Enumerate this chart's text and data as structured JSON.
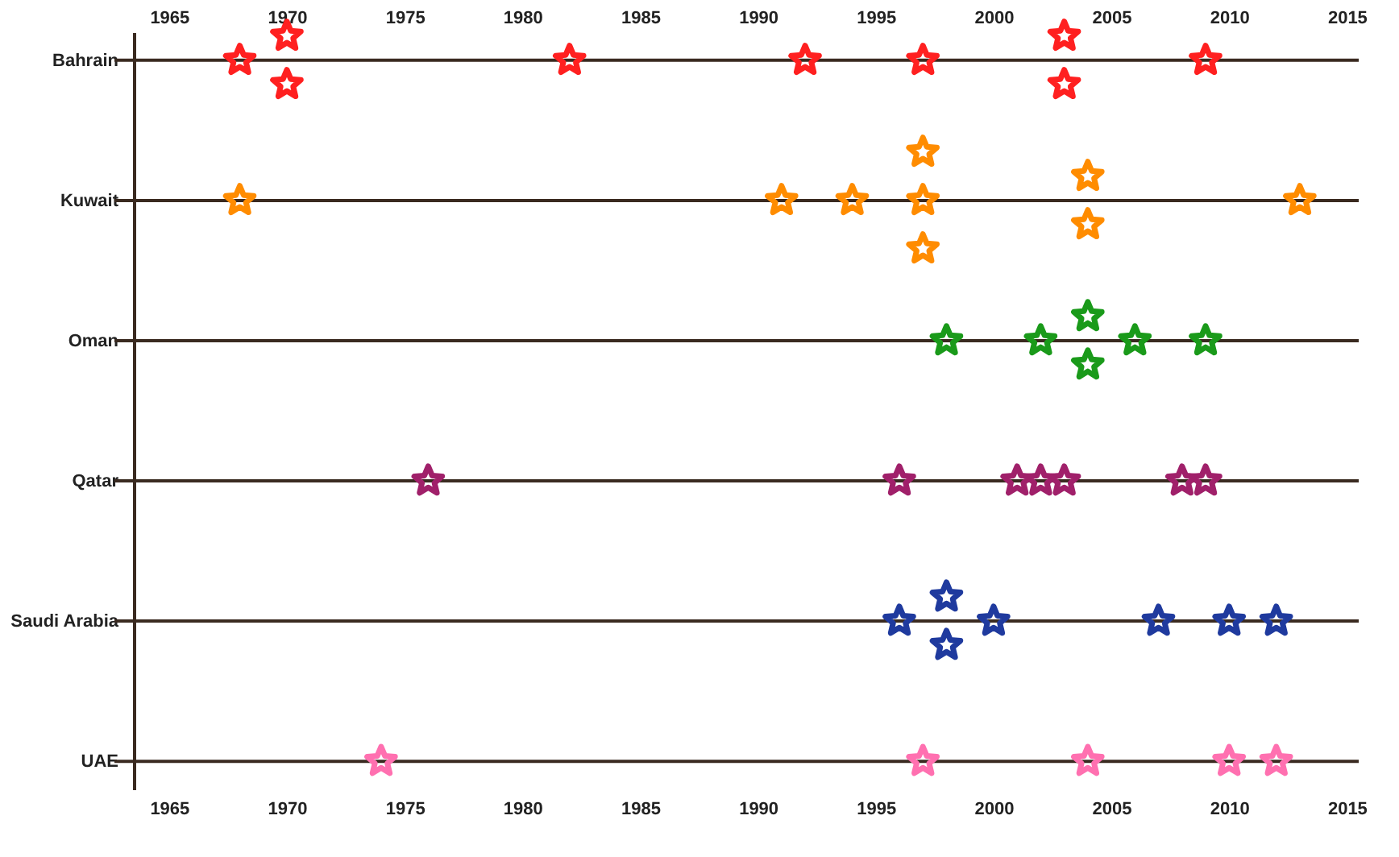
{
  "chart_data": {
    "type": "scatter",
    "orientation": "horizontal",
    "marker": "star",
    "grid": "y",
    "categories": [
      "Bahrain",
      "Kuwait",
      "Oman",
      "Qatar",
      "Saudi Arabia",
      "UAE"
    ],
    "xlim": [
      1963.5,
      2015.5
    ],
    "xticks": [
      1965,
      1970,
      1975,
      1980,
      1985,
      1990,
      1995,
      2000,
      2005,
      2010,
      2015
    ],
    "x2lim": [
      1963.5,
      2015.5
    ],
    "x2ticks": [
      1965,
      1970,
      1975,
      1980,
      1985,
      1990,
      1995,
      2000,
      2005,
      2010,
      2015
    ],
    "series": [
      {
        "colors": [
          "#ff2020",
          "#ff8c00",
          "#1a9a1a",
          "#a0206a",
          "#1f3a9e",
          "#ff70b0"
        ],
        "values": [
          1968,
          1968,
          1998,
          1976,
          1996,
          1974
        ]
      },
      {
        "colors": [
          "#ff2020",
          "#ff8c00",
          "#1a9a1a",
          "#a0206a",
          "#1f3a9e",
          "#ff70b0"
        ],
        "values": [
          1970,
          1991,
          2002,
          1996,
          1998,
          1997
        ]
      },
      {
        "colors": [
          "#ff2020",
          "#ff8c00",
          "#1a9a1a",
          "#a0206a",
          "#1f3a9e",
          "#ff70b0"
        ],
        "values": [
          1970,
          1994,
          2004,
          2001,
          1998,
          2004
        ]
      },
      {
        "colors": [
          "#ff2020",
          "#ff8c00",
          "#1a9a1a",
          "#a0206a",
          "#1f3a9e",
          "#ff70b0"
        ],
        "values": [
          1982,
          1997,
          2004,
          2002,
          2000,
          2010
        ]
      },
      {
        "colors": [
          "#ff2020",
          "#ff8c00",
          "#1a9a1a",
          "#a0206a",
          "#1f3a9e",
          "#ff70b0"
        ],
        "values": [
          1992,
          1997,
          2006,
          2003,
          2007,
          2012
        ]
      },
      {
        "colors": [
          "#ff2020",
          "#ff8c00",
          "#1a9a1a",
          "#a0206a",
          "#1f3a9e",
          null
        ],
        "values": [
          1997,
          1997,
          2009,
          2008,
          2010,
          null
        ]
      },
      {
        "colors": [
          "#ff2020",
          "#ff8c00",
          null,
          "#a0206a",
          "#1f3a9e",
          null
        ],
        "values": [
          2003,
          2004,
          null,
          2009,
          2012,
          null
        ]
      },
      {
        "colors": [
          "#ff2020",
          "#ff8c00",
          null,
          null,
          null,
          null
        ],
        "values": [
          2003,
          2004,
          null,
          null,
          null,
          null
        ]
      },
      {
        "colors": [
          "#ff2020",
          "#ff8c00",
          null,
          null,
          null,
          null
        ],
        "values": [
          2009,
          2013,
          null,
          null,
          null,
          null
        ]
      }
    ]
  }
}
